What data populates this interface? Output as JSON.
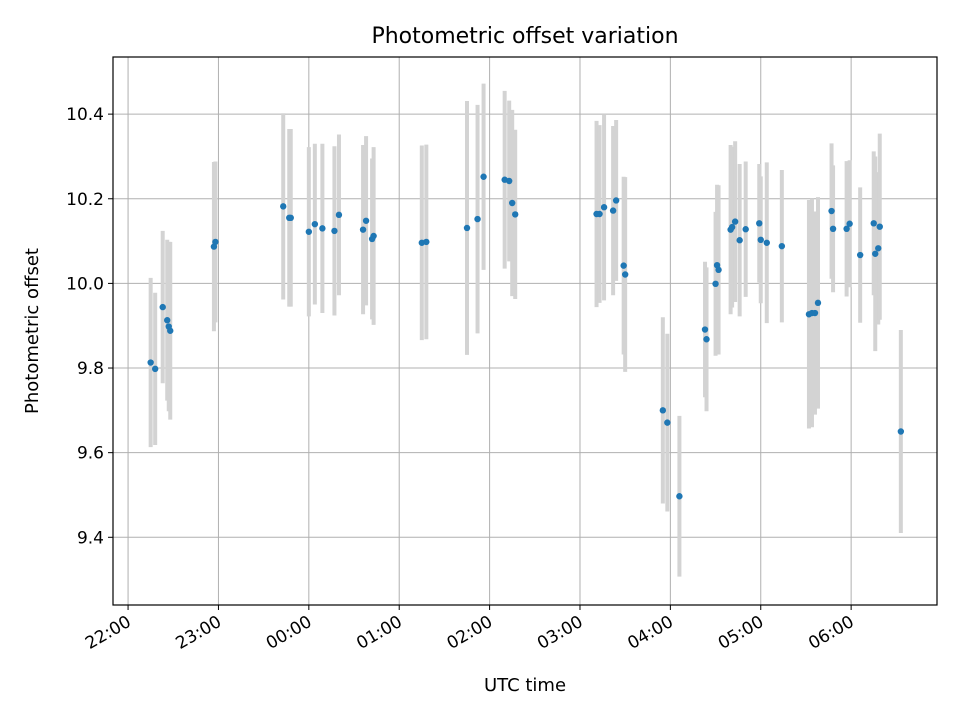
{
  "chart_data": {
    "type": "scatter",
    "title": "Photometric offset variation",
    "xlabel": "UTC time",
    "ylabel": "Photometric offset",
    "x_tick_labels": [
      "22:00",
      "23:00",
      "00:00",
      "01:00",
      "02:00",
      "03:00",
      "04:00",
      "05:00",
      "06:00"
    ],
    "x_tick_minutes": [
      0,
      60,
      120,
      180,
      240,
      300,
      360,
      420,
      480
    ],
    "xlim_minutes": [
      -10,
      537
    ],
    "y_ticks": [
      9.4,
      9.6,
      9.8,
      10.0,
      10.2,
      10.4
    ],
    "y_tick_labels": [
      "9.4",
      "9.6",
      "9.8",
      "10.0",
      "10.2",
      "10.4"
    ],
    "ylim": [
      9.24,
      10.535
    ],
    "grid": true,
    "colors": {
      "point": "#1f77b4",
      "errorbar": "#d3d3d3",
      "grid": "#b0b0b0"
    },
    "points": [
      {
        "t": 15,
        "y": 9.813,
        "err": 0.2
      },
      {
        "t": 18,
        "y": 9.798,
        "err": 0.18
      },
      {
        "t": 23,
        "y": 9.944,
        "err": 0.18
      },
      {
        "t": 26,
        "y": 9.913,
        "err": 0.19
      },
      {
        "t": 27,
        "y": 9.898,
        "err": 0.2
      },
      {
        "t": 28,
        "y": 9.888,
        "err": 0.21
      },
      {
        "t": 57,
        "y": 10.087,
        "err": 0.2
      },
      {
        "t": 58,
        "y": 10.098,
        "err": 0.19
      },
      {
        "t": 103,
        "y": 10.182,
        "err": 0.22
      },
      {
        "t": 107,
        "y": 10.155,
        "err": 0.21
      },
      {
        "t": 108,
        "y": 10.155,
        "err": 0.21
      },
      {
        "t": 120,
        "y": 10.122,
        "err": 0.2
      },
      {
        "t": 124,
        "y": 10.14,
        "err": 0.19
      },
      {
        "t": 129,
        "y": 10.13,
        "err": 0.2
      },
      {
        "t": 137,
        "y": 10.124,
        "err": 0.2
      },
      {
        "t": 140,
        "y": 10.162,
        "err": 0.19
      },
      {
        "t": 156,
        "y": 10.127,
        "err": 0.2
      },
      {
        "t": 158,
        "y": 10.148,
        "err": 0.2
      },
      {
        "t": 162,
        "y": 10.105,
        "err": 0.19
      },
      {
        "t": 163,
        "y": 10.112,
        "err": 0.21
      },
      {
        "t": 195,
        "y": 10.096,
        "err": 0.23
      },
      {
        "t": 198,
        "y": 10.098,
        "err": 0.23
      },
      {
        "t": 225,
        "y": 10.131,
        "err": 0.3
      },
      {
        "t": 232,
        "y": 10.152,
        "err": 0.27
      },
      {
        "t": 236,
        "y": 10.252,
        "err": 0.22
      },
      {
        "t": 250,
        "y": 10.245,
        "err": 0.21
      },
      {
        "t": 253,
        "y": 10.242,
        "err": 0.19
      },
      {
        "t": 255,
        "y": 10.19,
        "err": 0.22
      },
      {
        "t": 257,
        "y": 10.163,
        "err": 0.2
      },
      {
        "t": 311,
        "y": 10.164,
        "err": 0.22
      },
      {
        "t": 313,
        "y": 10.164,
        "err": 0.21
      },
      {
        "t": 316,
        "y": 10.18,
        "err": 0.22
      },
      {
        "t": 322,
        "y": 10.172,
        "err": 0.2
      },
      {
        "t": 324,
        "y": 10.196,
        "err": 0.19
      },
      {
        "t": 329,
        "y": 10.042,
        "err": 0.21
      },
      {
        "t": 330,
        "y": 10.021,
        "err": 0.23
      },
      {
        "t": 355,
        "y": 9.7,
        "err": 0.22
      },
      {
        "t": 358,
        "y": 9.671,
        "err": 0.21
      },
      {
        "t": 366,
        "y": 9.497,
        "err": 0.19
      },
      {
        "t": 383,
        "y": 9.891,
        "err": 0.16
      },
      {
        "t": 384,
        "y": 9.868,
        "err": 0.17
      },
      {
        "t": 390,
        "y": 9.999,
        "err": 0.17
      },
      {
        "t": 391,
        "y": 10.043,
        "err": 0.19
      },
      {
        "t": 392,
        "y": 10.032,
        "err": 0.2
      },
      {
        "t": 400,
        "y": 10.127,
        "err": 0.2
      },
      {
        "t": 401,
        "y": 10.133,
        "err": 0.19
      },
      {
        "t": 403,
        "y": 10.146,
        "err": 0.19
      },
      {
        "t": 406,
        "y": 10.102,
        "err": 0.18
      },
      {
        "t": 410,
        "y": 10.128,
        "err": 0.16
      },
      {
        "t": 419,
        "y": 10.142,
        "err": 0.14
      },
      {
        "t": 420,
        "y": 10.103,
        "err": 0.15
      },
      {
        "t": 424,
        "y": 10.096,
        "err": 0.19
      },
      {
        "t": 434,
        "y": 10.088,
        "err": 0.18
      },
      {
        "t": 452,
        "y": 9.927,
        "err": 0.27
      },
      {
        "t": 454,
        "y": 9.93,
        "err": 0.27
      },
      {
        "t": 456,
        "y": 9.93,
        "err": 0.24
      },
      {
        "t": 458,
        "y": 9.954,
        "err": 0.25
      },
      {
        "t": 467,
        "y": 10.171,
        "err": 0.16
      },
      {
        "t": 468,
        "y": 10.129,
        "err": 0.15
      },
      {
        "t": 477,
        "y": 10.129,
        "err": 0.16
      },
      {
        "t": 479,
        "y": 10.141,
        "err": 0.15
      },
      {
        "t": 486,
        "y": 10.067,
        "err": 0.16
      },
      {
        "t": 495,
        "y": 10.142,
        "err": 0.17
      },
      {
        "t": 496,
        "y": 10.07,
        "err": 0.23
      },
      {
        "t": 498,
        "y": 10.083,
        "err": 0.18
      },
      {
        "t": 499,
        "y": 10.134,
        "err": 0.22
      },
      {
        "t": 513,
        "y": 9.65,
        "err": 0.24
      }
    ]
  }
}
